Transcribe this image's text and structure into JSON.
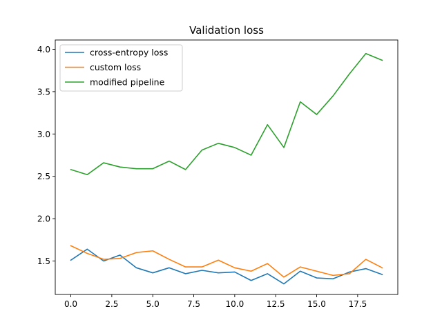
{
  "chart_data": {
    "type": "line",
    "title": "Validation loss",
    "xlabel": "",
    "ylabel": "",
    "xlim": [
      -0.95,
      19.95
    ],
    "ylim": [
      1.105,
      4.11
    ],
    "x_ticks": [
      0.0,
      2.5,
      5.0,
      7.5,
      10.0,
      12.5,
      15.0,
      17.5
    ],
    "x_tick_labels": [
      "0.0",
      "2.5",
      "5.0",
      "7.5",
      "10.0",
      "12.5",
      "15.0",
      "17.5"
    ],
    "y_ticks": [
      1.5,
      2.0,
      2.5,
      3.0,
      3.5,
      4.0
    ],
    "y_tick_labels": [
      "1.5",
      "2.0",
      "2.5",
      "3.0",
      "3.5",
      "4.0"
    ],
    "grid": false,
    "legend_position": "top-left",
    "x": [
      0,
      1,
      2,
      3,
      4,
      5,
      6,
      7,
      8,
      9,
      10,
      11,
      12,
      13,
      14,
      15,
      16,
      17,
      18,
      19
    ],
    "series": [
      {
        "name": "cross-entropy loss",
        "color": "#1f77b4",
        "values": [
          1.51,
          1.64,
          1.5,
          1.57,
          1.42,
          1.36,
          1.42,
          1.35,
          1.39,
          1.36,
          1.37,
          1.27,
          1.35,
          1.23,
          1.38,
          1.3,
          1.29,
          1.37,
          1.41,
          1.34
        ]
      },
      {
        "name": "custom loss",
        "color": "#ff7f0e",
        "values": [
          1.68,
          1.59,
          1.52,
          1.53,
          1.6,
          1.62,
          1.52,
          1.43,
          1.43,
          1.51,
          1.42,
          1.38,
          1.47,
          1.31,
          1.43,
          1.38,
          1.33,
          1.35,
          1.52,
          1.42
        ]
      },
      {
        "name": "modified pipeline",
        "color": "#2ca02c",
        "values": [
          2.58,
          2.52,
          2.66,
          2.61,
          2.59,
          2.59,
          2.68,
          2.58,
          2.81,
          2.89,
          2.84,
          2.75,
          3.11,
          2.84,
          3.38,
          3.23,
          3.45,
          3.71,
          3.95,
          3.87
        ]
      }
    ]
  }
}
